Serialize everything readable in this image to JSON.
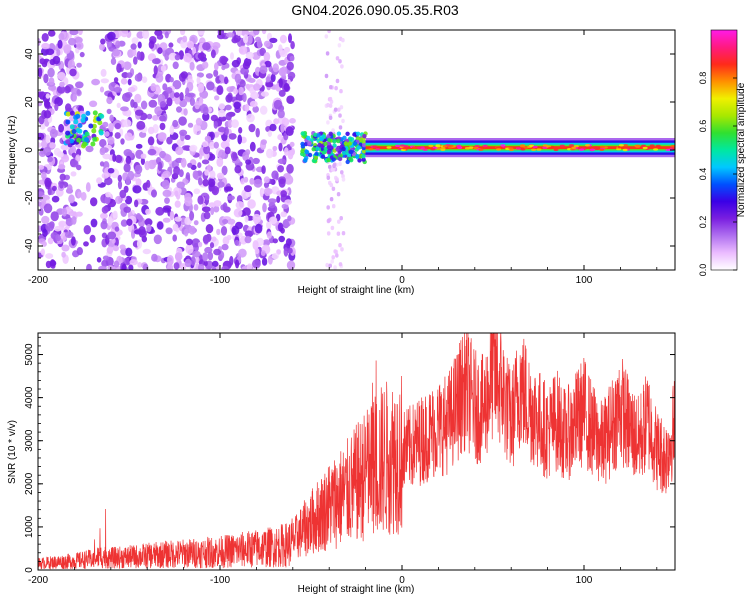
{
  "title": "GN04.2026.090.05.35.R03",
  "chart_data": [
    {
      "type": "heatmap",
      "xlabel": "Height of straight line (km)",
      "ylabel": "Frequency (Hz)",
      "xlim": [
        -200,
        150
      ],
      "ylim": [
        -50,
        50
      ],
      "x_ticks": [
        -200,
        -100,
        0,
        100
      ],
      "y_ticks": [
        -40,
        -20,
        0,
        20,
        40
      ],
      "grid": false,
      "colorbar": {
        "label": "Normalized spectral amplitude",
        "range": [
          0,
          1
        ],
        "ticks": [
          0.0,
          0.2,
          0.4,
          0.6,
          0.8
        ],
        "colormap": [
          "#ffffff",
          "#ebbcff",
          "#b070f0",
          "#7a1fe0",
          "#3a00e6",
          "#0050ff",
          "#00c8ff",
          "#00e8a0",
          "#30e030",
          "#a8e800",
          "#f0f000",
          "#ff9000",
          "#ff2a1a",
          "#ff1a80",
          "#ff1ae8"
        ]
      },
      "regions": [
        {
          "x": [
            -200,
            -60
          ],
          "freq_range": [
            -50,
            50
          ],
          "amplitude": 0.15,
          "description_level": "diffuse noise"
        },
        {
          "x": [
            -185,
            -165
          ],
          "freq_center": 10,
          "amplitude": 0.55
        },
        {
          "x": [
            -55,
            -20
          ],
          "freq_center": 1,
          "amplitude": 0.5
        },
        {
          "x": [
            -20,
            150
          ],
          "freq_center": 1,
          "amplitude": 0.85
        }
      ]
    },
    {
      "type": "line",
      "xlabel": "Height of straight line (km)",
      "ylabel": "SNR (10 * v/v)",
      "xlim": [
        -200,
        150
      ],
      "ylim": [
        0,
        5500
      ],
      "x_ticks": [
        -200,
        -100,
        0,
        100
      ],
      "y_ticks": [
        0,
        1000,
        2000,
        3000,
        4000,
        5000
      ],
      "grid": false,
      "series": [
        {
          "color": "#ee3333",
          "x": [
            -200,
            -190,
            -180,
            -170,
            -165,
            -160,
            -150,
            -140,
            -130,
            -120,
            -110,
            -100,
            -90,
            -80,
            -70,
            -62,
            -55,
            -50,
            -45,
            -40,
            -35,
            -30,
            -25,
            -20,
            -15,
            -10,
            -5,
            0,
            5,
            10,
            15,
            20,
            25,
            30,
            35,
            40,
            45,
            50,
            55,
            60,
            65,
            70,
            75,
            80,
            85,
            90,
            95,
            100,
            105,
            110,
            115,
            120,
            125,
            130,
            135,
            140,
            145,
            150
          ],
          "values": [
            150,
            180,
            210,
            260,
            320,
            280,
            300,
            330,
            360,
            380,
            400,
            420,
            460,
            500,
            540,
            600,
            900,
            1100,
            1300,
            1500,
            1650,
            1800,
            2000,
            2200,
            2400,
            2600,
            2650,
            2750,
            2850,
            3000,
            3150,
            3300,
            3400,
            3800,
            4300,
            3800,
            3700,
            4600,
            4200,
            3400,
            4300,
            3800,
            3500,
            3200,
            3500,
            3100,
            3400,
            3700,
            3200,
            2900,
            3300,
            3800,
            3300,
            3000,
            3500,
            2800,
            2600,
            3400
          ]
        }
      ]
    }
  ]
}
